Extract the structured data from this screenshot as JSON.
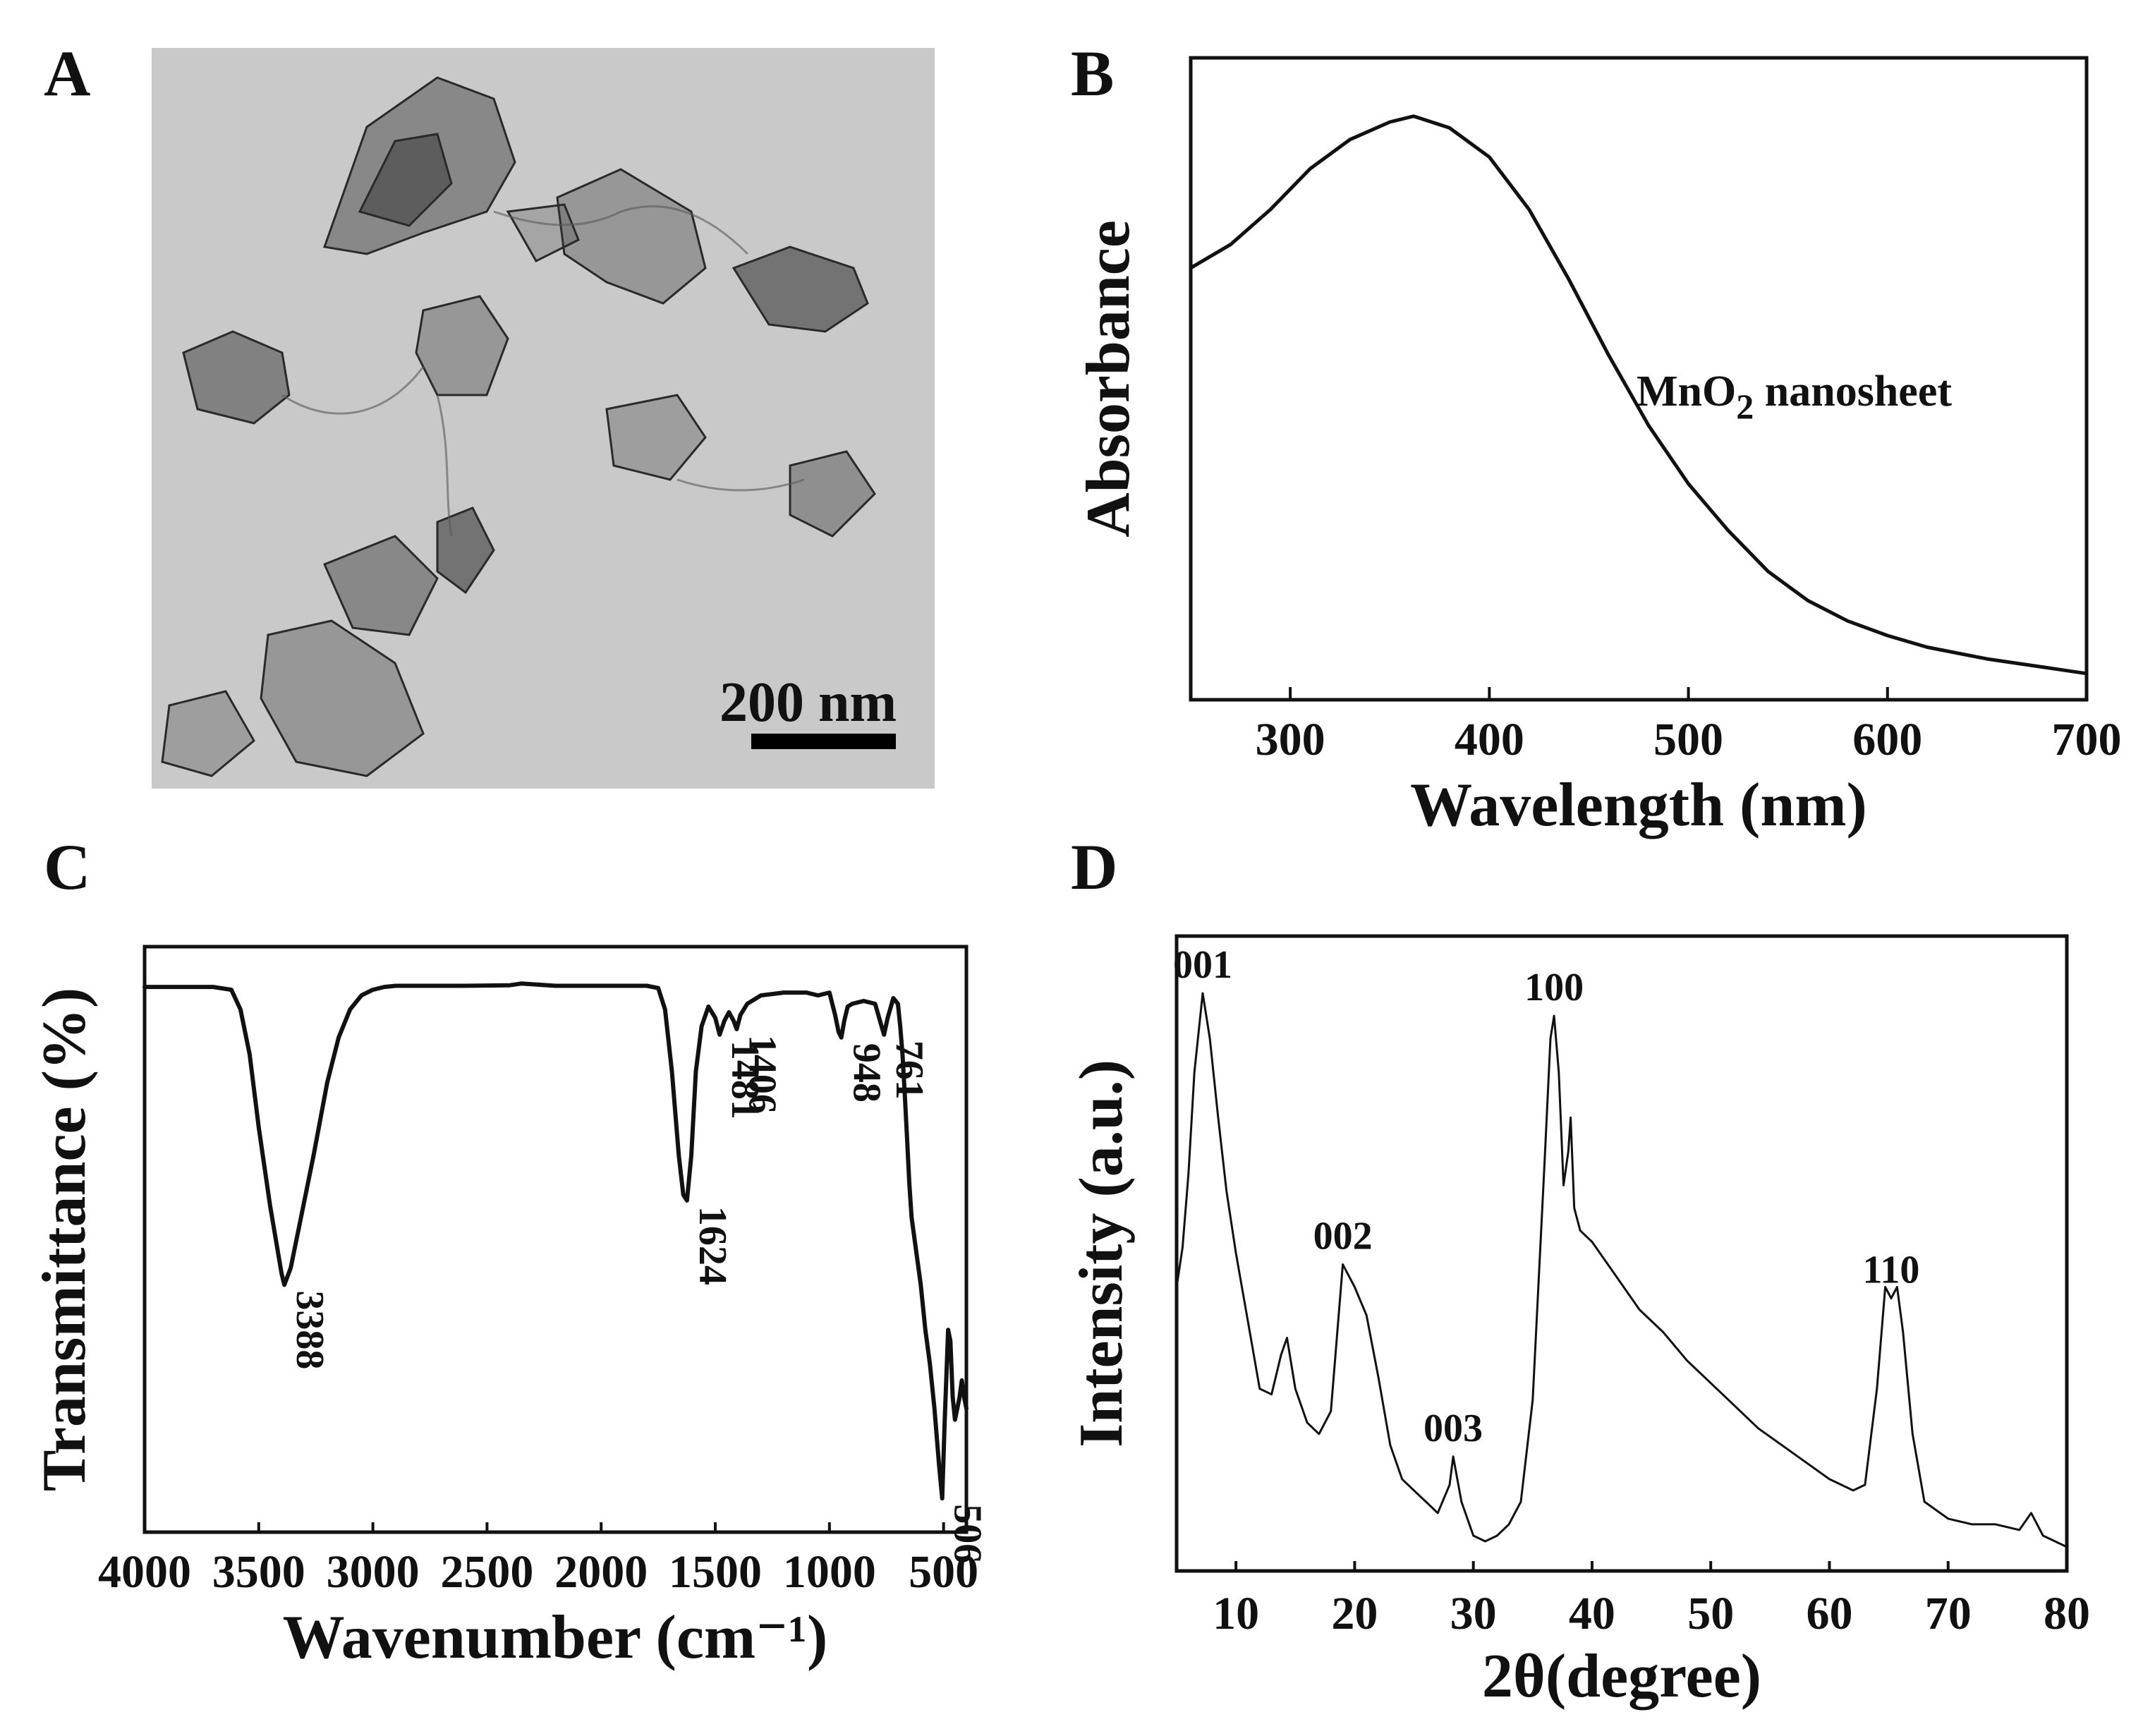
{
  "figure": {
    "panels": [
      {
        "letter": "A",
        "kind": "TEM micrograph",
        "scale_bar": "200 nm"
      },
      {
        "letter": "B"
      },
      {
        "letter": "C"
      },
      {
        "letter": "D"
      }
    ]
  },
  "colors": {
    "ink": "#111111",
    "tem_background": "#c9c9c9",
    "tem_flakes": "#3a3a3a"
  },
  "chart_data": [
    {
      "panel": "B",
      "type": "line",
      "title": "",
      "xlabel": "Wavelength (nm)",
      "ylabel": "Absorbance",
      "xlim": [
        250,
        700
      ],
      "ylim": [
        0,
        1.1
      ],
      "xticks": [
        300,
        400,
        500,
        600,
        700
      ],
      "yticks": [],
      "annotations": [
        {
          "text_main": "MnO",
          "text_sub": "2",
          "text_tail": " nanosheet",
          "x": 530,
          "y": 0.69
        }
      ],
      "series": [
        {
          "name": "MnO2 nanosheet",
          "x": [
            250,
            270,
            290,
            310,
            330,
            350,
            362,
            380,
            400,
            420,
            440,
            460,
            480,
            500,
            520,
            540,
            560,
            580,
            600,
            620,
            650,
            680,
            700
          ],
          "y": [
            0.74,
            0.78,
            0.84,
            0.91,
            0.96,
            0.99,
            1.0,
            0.98,
            0.93,
            0.84,
            0.72,
            0.59,
            0.47,
            0.37,
            0.29,
            0.22,
            0.17,
            0.135,
            0.11,
            0.09,
            0.07,
            0.055,
            0.045
          ]
        }
      ]
    },
    {
      "panel": "C",
      "type": "line",
      "title": "",
      "xlabel": "Wavenumber (cm⁻¹)",
      "ylabel": "Transmittance (%)",
      "xlim": [
        4000,
        400
      ],
      "ylim": [
        0,
        100
      ],
      "xticks": [
        4000,
        3500,
        3000,
        2500,
        2000,
        1500,
        1000,
        500
      ],
      "yticks": [],
      "peak_labels": [
        {
          "text": "3388",
          "x": 3388
        },
        {
          "text": "1624",
          "x": 1624
        },
        {
          "text": "1481",
          "x": 1481
        },
        {
          "text": "1406",
          "x": 1406
        },
        {
          "text": "948",
          "x": 948
        },
        {
          "text": "761",
          "x": 761
        },
        {
          "text": "506",
          "x": 506
        }
      ],
      "series": [
        {
          "name": "FTIR",
          "x": [
            4000,
            3700,
            3620,
            3580,
            3540,
            3500,
            3450,
            3400,
            3388,
            3360,
            3320,
            3260,
            3200,
            3150,
            3100,
            3050,
            3000,
            2950,
            2900,
            2800,
            2600,
            2400,
            2350,
            2200,
            2000,
            1800,
            1750,
            1720,
            1690,
            1660,
            1640,
            1624,
            1605,
            1585,
            1560,
            1530,
            1500,
            1481,
            1460,
            1440,
            1420,
            1406,
            1390,
            1360,
            1300,
            1200,
            1100,
            1050,
            1000,
            975,
            960,
            948,
            935,
            920,
            900,
            850,
            800,
            775,
            761,
            745,
            720,
            700,
            690,
            680,
            670,
            660,
            650,
            640,
            620,
            600,
            580,
            560,
            540,
            520,
            506,
            495,
            480,
            470,
            460,
            450,
            440,
            430,
            420,
            410,
            400
          ],
          "y": [
            97,
            97,
            96.5,
            93,
            85,
            72,
            58,
            46,
            44,
            47,
            55,
            67,
            80,
            88,
            93,
            95.5,
            96.5,
            97,
            97.2,
            97.2,
            97.2,
            97.3,
            97.6,
            97.2,
            97.2,
            97.2,
            96.8,
            93,
            82,
            67,
            60,
            59,
            67,
            82,
            90,
            93.5,
            91.5,
            88.5,
            91,
            92.5,
            91,
            89.5,
            92,
            94,
            95.5,
            96,
            96,
            95.5,
            96,
            92,
            89,
            88,
            91,
            93.5,
            94,
            94.5,
            94,
            90.5,
            88.5,
            91.5,
            95,
            94,
            90,
            85,
            78,
            70,
            62,
            56,
            50,
            44,
            36,
            30,
            22,
            12,
            6,
            20,
            36,
            34,
            24,
            20,
            22,
            24,
            27,
            24,
            22
          ]
        }
      ]
    },
    {
      "panel": "D",
      "type": "line",
      "title": "",
      "xlabel": "2θ(degree)",
      "ylabel": "Intensity (a.u.)",
      "xlim": [
        5,
        80
      ],
      "ylim": [
        0,
        100
      ],
      "xticks": [
        10,
        20,
        30,
        40,
        50,
        60,
        70,
        80
      ],
      "yticks": [],
      "peak_labels": [
        {
          "text": "001",
          "x": 7.2
        },
        {
          "text": "002",
          "x": 19.0
        },
        {
          "text": "003",
          "x": 28.3
        },
        {
          "text": "100",
          "x": 36.8
        },
        {
          "text": "110",
          "x": 65.2
        }
      ],
      "series": [
        {
          "name": "XRD",
          "x": [
            5,
            5.5,
            6,
            6.5,
            7.2,
            7.8,
            8.5,
            9.2,
            10,
            11,
            12,
            13,
            13.8,
            14.3,
            15,
            16,
            17,
            18,
            19,
            20,
            21,
            22,
            23,
            24,
            25,
            26,
            27,
            28,
            28.3,
            29,
            30,
            31,
            32,
            33,
            34,
            35,
            36,
            36.5,
            36.8,
            37.2,
            37.6,
            38,
            38.2,
            38.5,
            39,
            40,
            42,
            44,
            46,
            48,
            50,
            52,
            54,
            56,
            58,
            60,
            62,
            63,
            64,
            64.7,
            65.2,
            65.7,
            66.2,
            67,
            68,
            70,
            72,
            74,
            76,
            77,
            78,
            79,
            80
          ],
          "y": [
            48,
            55,
            68,
            86,
            100,
            92,
            78,
            65,
            54,
            42,
            30,
            29,
            36,
            39,
            30,
            24,
            22,
            26,
            52,
            48,
            43,
            32,
            20,
            14,
            12,
            10,
            8,
            13,
            18,
            10,
            4,
            3,
            4,
            6,
            10,
            28,
            70,
            92,
            96,
            86,
            66,
            72,
            78,
            62,
            58,
            56,
            50,
            44,
            40,
            35,
            31,
            27,
            23,
            20,
            17,
            14,
            12,
            13,
            30,
            48,
            46,
            48,
            40,
            22,
            10,
            7,
            6,
            6,
            5,
            8,
            4,
            3,
            2
          ]
        }
      ]
    }
  ]
}
